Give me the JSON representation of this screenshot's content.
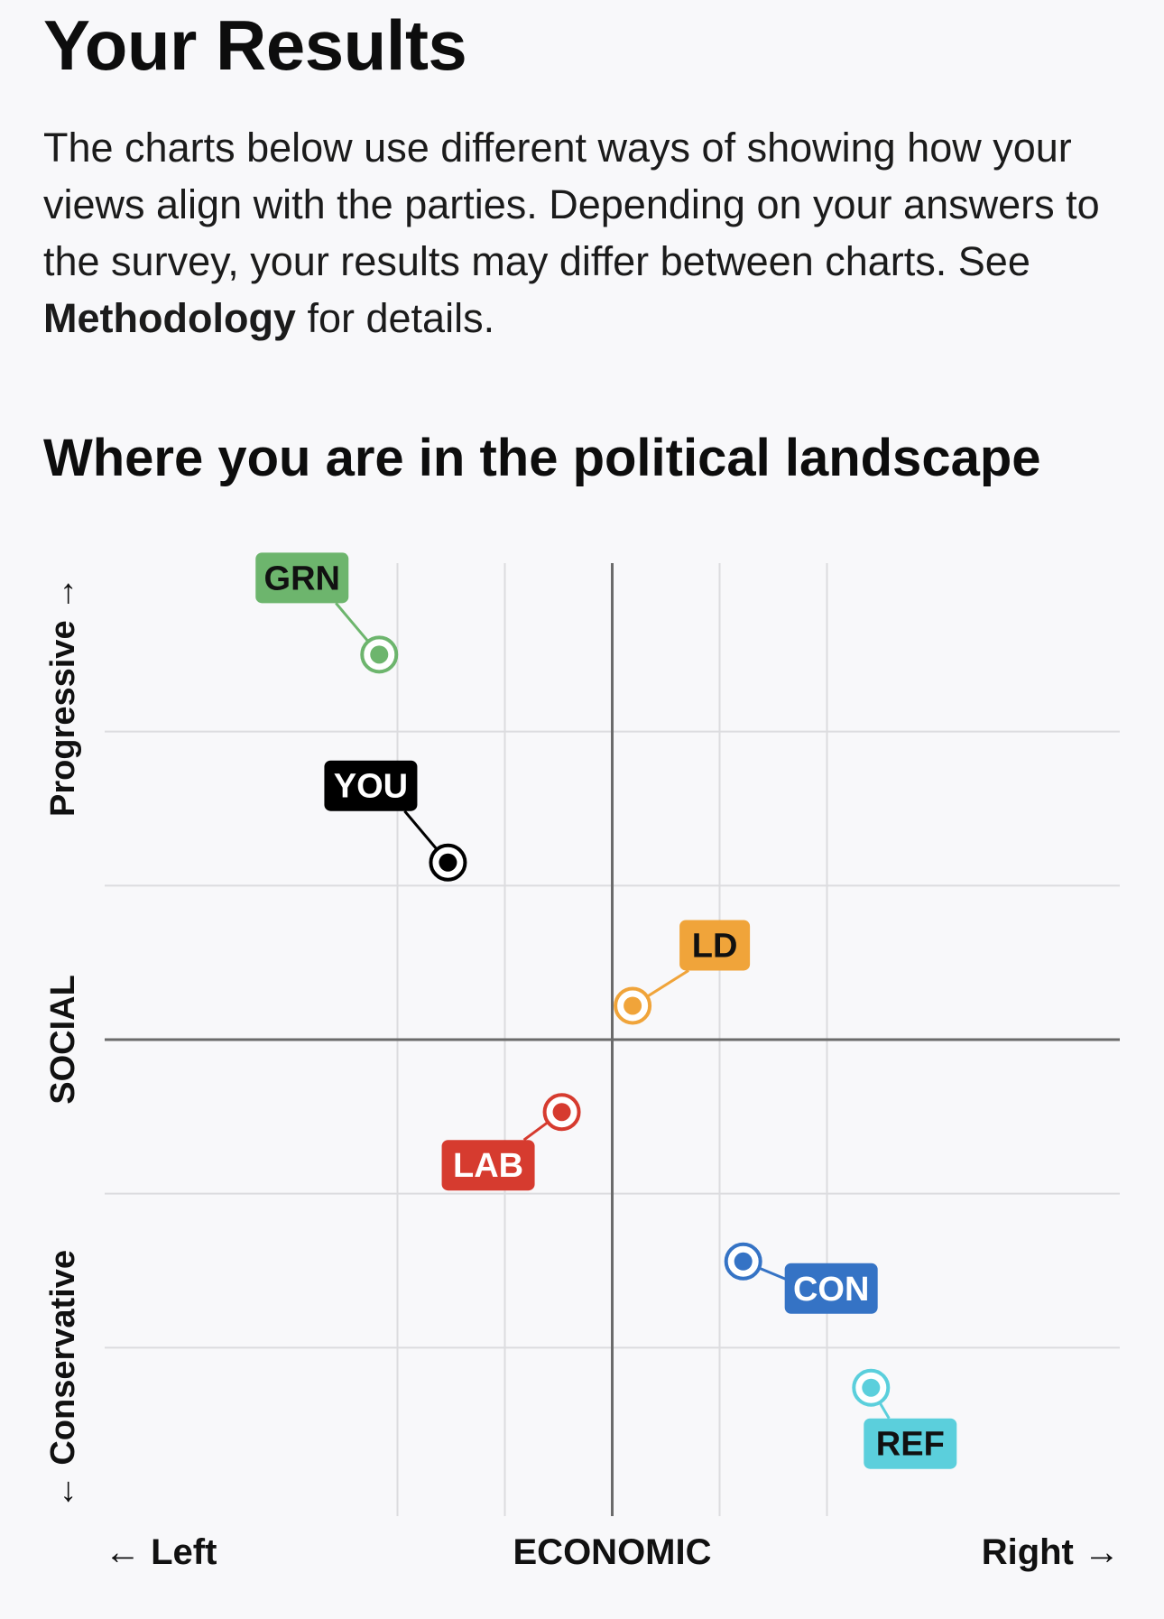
{
  "header": {
    "title": "Your Results",
    "intro_before": "The charts below use different ways of showing how your views align with the parties. Depending on your answers to the survey, your results may differ between charts. See ",
    "intro_link": "Methodology",
    "intro_after": " for details."
  },
  "section": {
    "title": "Where you are in the political landscape"
  },
  "chart_data": {
    "type": "scatter",
    "title": "Where you are in the political landscape",
    "xlabel": "ECONOMIC",
    "ylabel": "SOCIAL",
    "x_left_label": "← Left",
    "x_right_label": "Right →",
    "y_top_label": "Progressive →",
    "y_bottom_label": "← Conservative",
    "xlim": [
      -3,
      3
    ],
    "ylim": [
      -3,
      3
    ],
    "grid": true,
    "points": [
      {
        "name": "GRN",
        "x": -2.17,
        "y": 2.5,
        "color": "#6db56d",
        "text_color": "#111111",
        "label_pos": "up-left"
      },
      {
        "name": "YOU",
        "x": -1.53,
        "y": 1.15,
        "color": "#000000",
        "text_color": "#ffffff",
        "label_pos": "up-left"
      },
      {
        "name": "LD",
        "x": 0.19,
        "y": 0.22,
        "color": "#f0a43a",
        "text_color": "#111111",
        "label_pos": "up-right"
      },
      {
        "name": "LAB",
        "x": -0.47,
        "y": -0.47,
        "color": "#d63b2f",
        "text_color": "#ffffff",
        "label_pos": "down-left"
      },
      {
        "name": "CON",
        "x": 1.22,
        "y": -1.44,
        "color": "#3573c5",
        "text_color": "#ffffff",
        "label_pos": "down-right"
      },
      {
        "name": "REF",
        "x": 2.41,
        "y": -2.26,
        "color": "#5bcfdc",
        "text_color": "#111111",
        "label_pos": "down-right"
      }
    ]
  }
}
